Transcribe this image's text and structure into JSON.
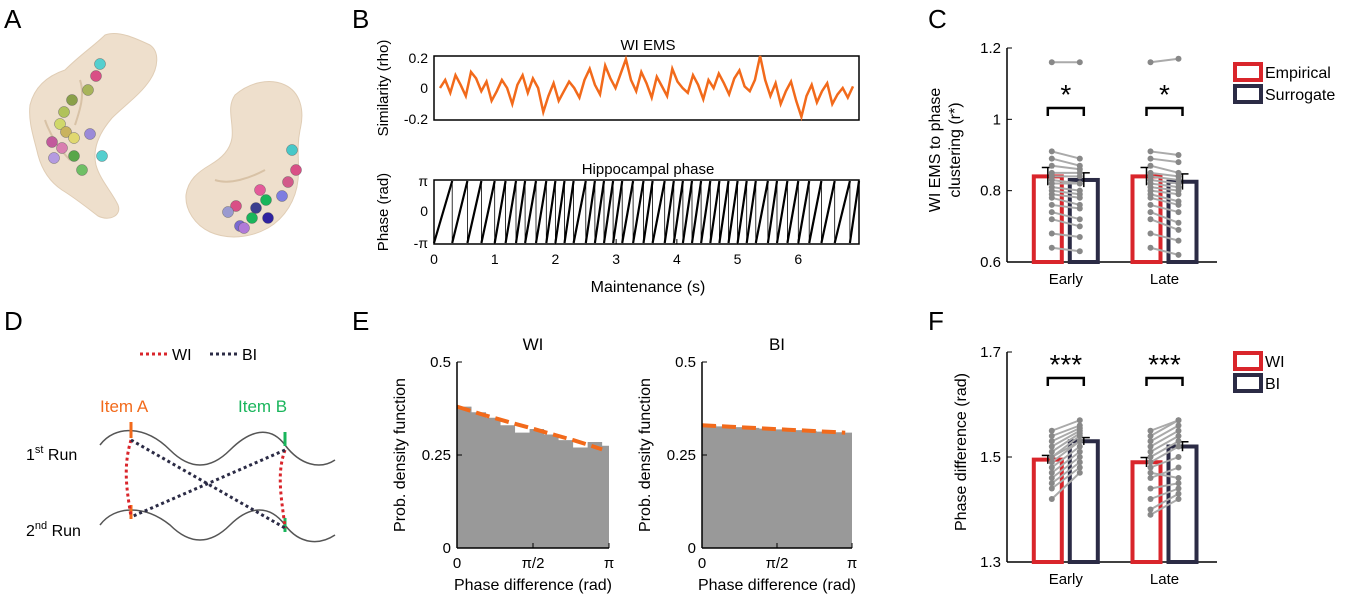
{
  "panels": {
    "A": "A",
    "B": "B",
    "C": "C",
    "D": "D",
    "E": "E",
    "F": "F"
  },
  "colors": {
    "orange": "#f26a1b",
    "red": "#d9252b",
    "navy": "#2b2b45",
    "gray_bar": "#999999",
    "brain": "#eedfcc",
    "green": "#19b55b",
    "purple": "#3b3e8e"
  },
  "panel_d": {
    "legend_wi": "WI",
    "legend_bi": "BI",
    "item_a": "Item A",
    "item_b": "Item B",
    "run1": "1",
    "run1_sup": "st",
    "run1_suffix": " Run",
    "run2": "2",
    "run2_sup": "nd",
    "run2_suffix": " Run"
  },
  "chart_data": [
    {
      "id": "B_top",
      "type": "line",
      "title": "WI EMS",
      "ylabel": "Similarity (rho)",
      "ylim": [
        -0.2,
        0.2
      ],
      "yticks": [
        "0.2",
        "0",
        "-0.2"
      ],
      "color": "#f26a1b",
      "x_range_s": [
        0,
        7
      ],
      "values": [
        0.0,
        0.05,
        -0.03,
        0.08,
        0.02,
        -0.05,
        0.1,
        0.06,
        -0.02,
        0.04,
        -0.08,
        -0.02,
        0.05,
        0.0,
        -0.1,
        0.02,
        0.08,
        -0.03,
        0.06,
        0.0,
        -0.15,
        -0.05,
        0.03,
        -0.08,
        -0.02,
        0.04,
        0.0,
        -0.06,
        0.05,
        0.12,
        0.02,
        -0.04,
        0.14,
        0.06,
        0.0,
        0.09,
        0.18,
        0.05,
        -0.02,
        0.1,
        0.03,
        -0.06,
        0.07,
        0.01,
        -0.05,
        0.12,
        0.04,
        0.0,
        -0.03,
        0.08,
        0.02,
        -0.07,
        0.05,
        0.0,
        0.09,
        0.03,
        -0.04,
        0.06,
        0.11,
        0.01,
        -0.02,
        0.05,
        0.2,
        0.05,
        -0.05,
        0.03,
        -0.1,
        -0.02,
        0.04,
        -0.08,
        -0.18,
        -0.05,
        0.02,
        -0.09,
        -0.02,
        0.03,
        -0.1,
        -0.04,
        0.0,
        -0.06,
        0.01
      ]
    },
    {
      "id": "B_bottom",
      "type": "line",
      "title": "Hippocampal phase",
      "ylabel": "Phase (rad)",
      "xlabel": "Maintenance (s)",
      "yticks": [
        "π",
        "0",
        "-π"
      ],
      "xticks": [
        "0",
        "1",
        "2",
        "3",
        "4",
        "5",
        "6"
      ],
      "xlim": [
        0,
        7
      ],
      "color": "#000000",
      "cycle_starts_s": [
        0.0,
        0.3,
        0.55,
        0.78,
        1.0,
        1.18,
        1.35,
        1.5,
        1.68,
        1.85,
        2.0,
        2.15,
        2.3,
        2.5,
        2.65,
        2.8,
        2.95,
        3.1,
        3.28,
        3.45,
        3.6,
        3.8,
        3.95,
        4.1,
        4.25,
        4.4,
        4.55,
        4.7,
        4.85,
        5.0,
        5.15,
        5.3,
        5.5,
        5.65,
        5.82,
        6.0,
        6.18,
        6.38,
        6.6,
        6.85
      ]
    },
    {
      "id": "C",
      "type": "bar",
      "ylabel": "WI EMS to phase clustering (r*)",
      "ylim": [
        0.6,
        1.2
      ],
      "yticks": [
        "1.2",
        "1",
        "0.8",
        "0.6"
      ],
      "categories": [
        "Early",
        "Late"
      ],
      "series": [
        {
          "name": "Empirical",
          "values": [
            0.84,
            0.84
          ],
          "err": [
            0.025,
            0.025
          ]
        },
        {
          "name": "Surrogate",
          "values": [
            0.83,
            0.825
          ],
          "err": [
            0.02,
            0.022
          ]
        }
      ],
      "significance": [
        "*",
        "*"
      ],
      "pairs": [
        [
          [
            1.16,
            1.16
          ],
          [
            0.91,
            0.89
          ],
          [
            0.89,
            0.87
          ],
          [
            0.87,
            0.86
          ],
          [
            0.85,
            0.85
          ],
          [
            0.84,
            0.84
          ],
          [
            0.83,
            0.82
          ],
          [
            0.82,
            0.82
          ],
          [
            0.81,
            0.8
          ],
          [
            0.8,
            0.79
          ],
          [
            0.79,
            0.78
          ],
          [
            0.78,
            0.76
          ],
          [
            0.76,
            0.75
          ],
          [
            0.74,
            0.72
          ],
          [
            0.72,
            0.7
          ],
          [
            0.68,
            0.67
          ],
          [
            0.64,
            0.63
          ]
        ],
        [
          [
            1.16,
            1.17
          ],
          [
            0.91,
            0.9
          ],
          [
            0.89,
            0.88
          ],
          [
            0.87,
            0.85
          ],
          [
            0.85,
            0.84
          ],
          [
            0.84,
            0.83
          ],
          [
            0.83,
            0.82
          ],
          [
            0.82,
            0.81
          ],
          [
            0.81,
            0.8
          ],
          [
            0.8,
            0.79
          ],
          [
            0.79,
            0.77
          ],
          [
            0.78,
            0.76
          ],
          [
            0.76,
            0.74
          ],
          [
            0.74,
            0.71
          ],
          [
            0.72,
            0.69
          ],
          [
            0.68,
            0.66
          ],
          [
            0.64,
            0.62
          ]
        ]
      ]
    },
    {
      "id": "E_WI",
      "type": "area",
      "title": "WI",
      "ylabel": "Prob. density function",
      "xlabel": "Phase difference (rad)",
      "ylim": [
        0,
        0.5
      ],
      "yticks": [
        "0.5",
        "0.25",
        "0"
      ],
      "xticks": [
        "0",
        "π/2",
        "π"
      ],
      "x": [
        0,
        0.3,
        0.6,
        0.9,
        1.2,
        1.5,
        1.8,
        2.1,
        2.4,
        2.7,
        3.0
      ],
      "hist": [
        0.38,
        0.365,
        0.35,
        0.33,
        0.31,
        0.32,
        0.305,
        0.29,
        0.27,
        0.285,
        0.275
      ],
      "fit": [
        0.38,
        0.368,
        0.356,
        0.345,
        0.334,
        0.323,
        0.312,
        0.301,
        0.29,
        0.278,
        0.265
      ]
    },
    {
      "id": "E_BI",
      "type": "area",
      "title": "BI",
      "ylabel": "Prob. density function",
      "xlabel": "Phase difference (rad)",
      "ylim": [
        0,
        0.5
      ],
      "yticks": [
        "0.5",
        "0.25",
        "0"
      ],
      "xticks": [
        "0",
        "π/2",
        "π"
      ],
      "x": [
        0,
        0.3,
        0.6,
        0.9,
        1.2,
        1.5,
        1.8,
        2.1,
        2.4,
        2.7,
        3.0
      ],
      "hist": [
        0.33,
        0.327,
        0.325,
        0.323,
        0.321,
        0.319,
        0.317,
        0.315,
        0.313,
        0.311,
        0.31
      ],
      "fit": [
        0.33,
        0.328,
        0.326,
        0.324,
        0.322,
        0.32,
        0.318,
        0.316,
        0.314,
        0.312,
        0.31
      ]
    },
    {
      "id": "F",
      "type": "bar",
      "ylabel": "Phase difference (rad)",
      "ylim": [
        1.3,
        1.7
      ],
      "yticks": [
        "1.7",
        "1.5",
        "1.3"
      ],
      "categories": [
        "Early",
        "Late"
      ],
      "series": [
        {
          "name": "WI",
          "values": [
            1.495,
            1.49
          ],
          "err": [
            0.008,
            0.009
          ]
        },
        {
          "name": "BI",
          "values": [
            1.53,
            1.52
          ],
          "err": [
            0.007,
            0.009
          ]
        }
      ],
      "significance": [
        "***",
        "***"
      ],
      "pairs": [
        [
          [
            1.55,
            1.57
          ],
          [
            1.54,
            1.56
          ],
          [
            1.53,
            1.555
          ],
          [
            1.52,
            1.55
          ],
          [
            1.51,
            1.545
          ],
          [
            1.5,
            1.54
          ],
          [
            1.5,
            1.53
          ],
          [
            1.49,
            1.53
          ],
          [
            1.48,
            1.52
          ],
          [
            1.47,
            1.51
          ],
          [
            1.46,
            1.5
          ],
          [
            1.45,
            1.49
          ],
          [
            1.44,
            1.48
          ],
          [
            1.42,
            1.47
          ]
        ],
        [
          [
            1.55,
            1.57
          ],
          [
            1.54,
            1.57
          ],
          [
            1.53,
            1.56
          ],
          [
            1.52,
            1.55
          ],
          [
            1.51,
            1.54
          ],
          [
            1.5,
            1.53
          ],
          [
            1.49,
            1.52
          ],
          [
            1.48,
            1.5
          ],
          [
            1.47,
            1.46
          ],
          [
            1.46,
            1.48
          ],
          [
            1.44,
            1.45
          ],
          [
            1.42,
            1.44
          ],
          [
            1.4,
            1.43
          ],
          [
            1.39,
            1.42
          ]
        ]
      ]
    }
  ]
}
